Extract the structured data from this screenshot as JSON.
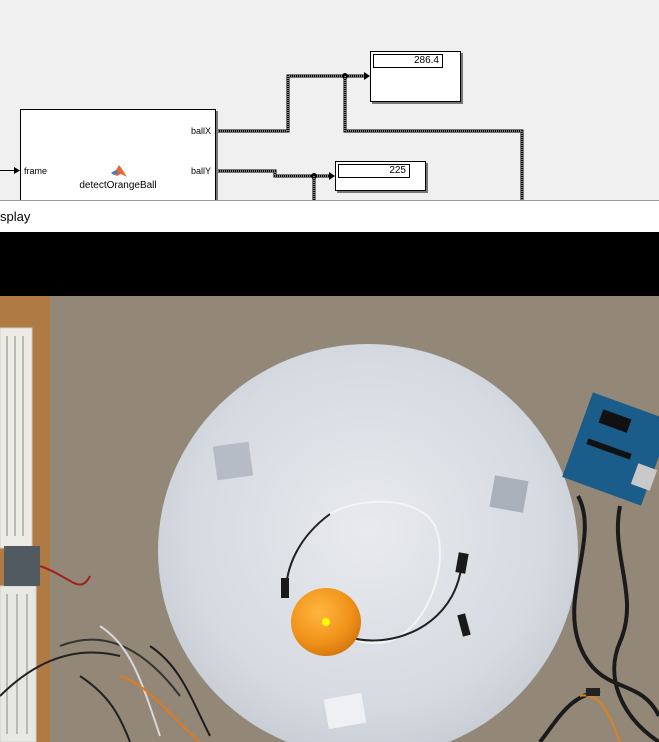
{
  "model": {
    "function_block": {
      "name": "detectOrangeBall",
      "input_port": "frame",
      "output_ports": [
        "ballX",
        "ballY"
      ],
      "icon": "matlab-logo-icon"
    },
    "displays": {
      "ball_x_value": "286.4",
      "ball_y_value": "225"
    }
  },
  "viewer": {
    "title": "splay"
  },
  "colors": {
    "canvas_bg": "#f0f0f0",
    "ball": "#f39a1c",
    "marker": "#ffff00",
    "table": "#d9dde4",
    "floor": "#8f8473"
  }
}
